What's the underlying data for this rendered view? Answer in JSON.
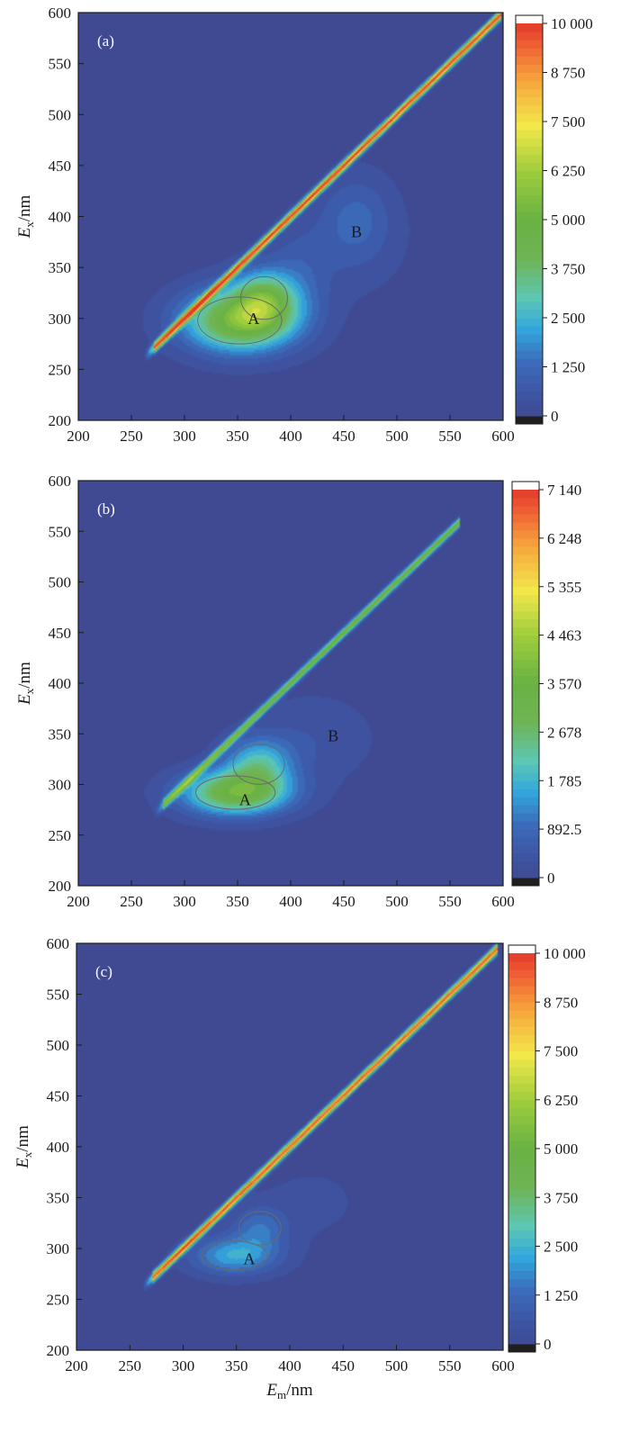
{
  "chart_data": [
    {
      "type": "heatmap",
      "panel_label": "(a)",
      "xlabel": {
        "main": "E",
        "sub": "m",
        "unit": "/nm",
        "show": false
      },
      "ylabel": {
        "main": "E",
        "sub": "x",
        "unit": "/nm"
      },
      "xlim": [
        200,
        600
      ],
      "ylim": [
        200,
        600
      ],
      "x_ticks": [
        "200",
        "250",
        "300",
        "350",
        "400",
        "450",
        "500",
        "550",
        "600"
      ],
      "y_ticks": [
        "200",
        "250",
        "300",
        "350",
        "400",
        "450",
        "500",
        "550",
        "600"
      ],
      "colorbar": {
        "max": 10000,
        "tick_values": [
          0,
          1250,
          2500,
          3750,
          5000,
          6250,
          7500,
          8750,
          10000
        ],
        "tick_labels": [
          "0",
          "1 250",
          "2 500",
          "3 750",
          "5 000",
          "6 250",
          "7 500",
          "8 750",
          "10 000"
        ]
      },
      "peaks": [
        {
          "label": "A",
          "em": 365,
          "ex": 300
        },
        {
          "label": "B",
          "em": 462,
          "ex": 385
        }
      ],
      "features": {
        "scatter_band": {
          "em_start": 272,
          "em_end": 598,
          "peak_intensity": 10000
        },
        "blobs": [
          {
            "em": 352,
            "ex": 298,
            "sem": 36,
            "sex": 21,
            "intensity": 5300
          },
          {
            "em": 375,
            "ex": 320,
            "sem": 20,
            "sex": 19,
            "intensity": 3300
          },
          {
            "em": 408,
            "ex": 340,
            "sem": 20,
            "sex": 32,
            "intensity": 700
          },
          {
            "em": 462,
            "ex": 398,
            "sem": 24,
            "sex": 30,
            "intensity": 1100
          },
          {
            "em": 440,
            "ex": 360,
            "sem": 50,
            "sex": 36,
            "intensity": 300
          }
        ]
      }
    },
    {
      "type": "heatmap",
      "panel_label": "(b)",
      "xlabel": {
        "main": "E",
        "sub": "m",
        "unit": "/nm",
        "show": false
      },
      "ylabel": {
        "main": "E",
        "sub": "x",
        "unit": "/nm"
      },
      "xlim": [
        200,
        600
      ],
      "ylim": [
        200,
        600
      ],
      "x_ticks": [
        "200",
        "250",
        "300",
        "350",
        "400",
        "450",
        "500",
        "550",
        "600"
      ],
      "y_ticks": [
        "200",
        "250",
        "300",
        "350",
        "400",
        "450",
        "500",
        "550",
        "600"
      ],
      "colorbar": {
        "max": 7140,
        "tick_values": [
          0,
          892.5,
          1785,
          2678,
          3570,
          4463,
          5355,
          6248,
          7140
        ],
        "tick_labels": [
          "0",
          "892.5",
          "1 785",
          "2 678",
          "3 570",
          "4 463",
          "5 355",
          "6 248",
          "7 140"
        ]
      },
      "peaks": [
        {
          "label": "A",
          "em": 357,
          "ex": 285
        },
        {
          "label": "B",
          "em": 440,
          "ex": 348
        }
      ],
      "features": {
        "scatter_band": {
          "em_start": 280,
          "em_end": 560,
          "peak_intensity": 3600
        },
        "blobs": [
          {
            "em": 348,
            "ex": 292,
            "sem": 34,
            "sex": 15,
            "intensity": 3500
          },
          {
            "em": 370,
            "ex": 320,
            "sem": 22,
            "sex": 18,
            "intensity": 1900
          },
          {
            "em": 420,
            "ex": 345,
            "sem": 40,
            "sex": 30,
            "intensity": 400
          }
        ]
      }
    },
    {
      "type": "heatmap",
      "panel_label": "(c)",
      "xlabel": {
        "main": "E",
        "sub": "m",
        "unit": "/nm",
        "show": true
      },
      "ylabel": {
        "main": "E",
        "sub": "x",
        "unit": "/nm"
      },
      "xlim": [
        200,
        600
      ],
      "ylim": [
        200,
        600
      ],
      "x_ticks": [
        "200",
        "250",
        "300",
        "350",
        "400",
        "450",
        "500",
        "550",
        "600"
      ],
      "y_ticks": [
        "200",
        "250",
        "300",
        "350",
        "400",
        "450",
        "500",
        "550",
        "600"
      ],
      "colorbar": {
        "max": 10000,
        "tick_values": [
          0,
          1250,
          2500,
          3750,
          5000,
          6250,
          7500,
          8750,
          10000
        ],
        "tick_labels": [
          "0",
          "1 250",
          "2 500",
          "3 750",
          "5 000",
          "6 250",
          "7 500",
          "8 750",
          "10 000"
        ]
      },
      "peaks": [
        {
          "label": "A",
          "em": 362,
          "ex": 290
        }
      ],
      "features": {
        "scatter_band": {
          "em_start": 272,
          "em_end": 595,
          "peak_intensity": 9700
        },
        "blobs": [
          {
            "em": 348,
            "ex": 293,
            "sem": 28,
            "sex": 13,
            "intensity": 2300
          },
          {
            "em": 372,
            "ex": 320,
            "sem": 18,
            "sex": 15,
            "intensity": 1300
          },
          {
            "em": 420,
            "ex": 345,
            "sem": 40,
            "sex": 30,
            "intensity": 300
          }
        ]
      }
    }
  ],
  "colors": {
    "background": "#3f4a93",
    "colormap": [
      "#1f1f1f",
      "#3f4a93",
      "#3b5fae",
      "#33a6dd",
      "#5cc7b4",
      "#69b244",
      "#9ccc3c",
      "#f2e84a",
      "#f6a23b",
      "#ee5b33",
      "#e33a2c",
      "#ffffff"
    ],
    "contour_line": "#6a6a6a",
    "frame": "#1a1a1a"
  }
}
